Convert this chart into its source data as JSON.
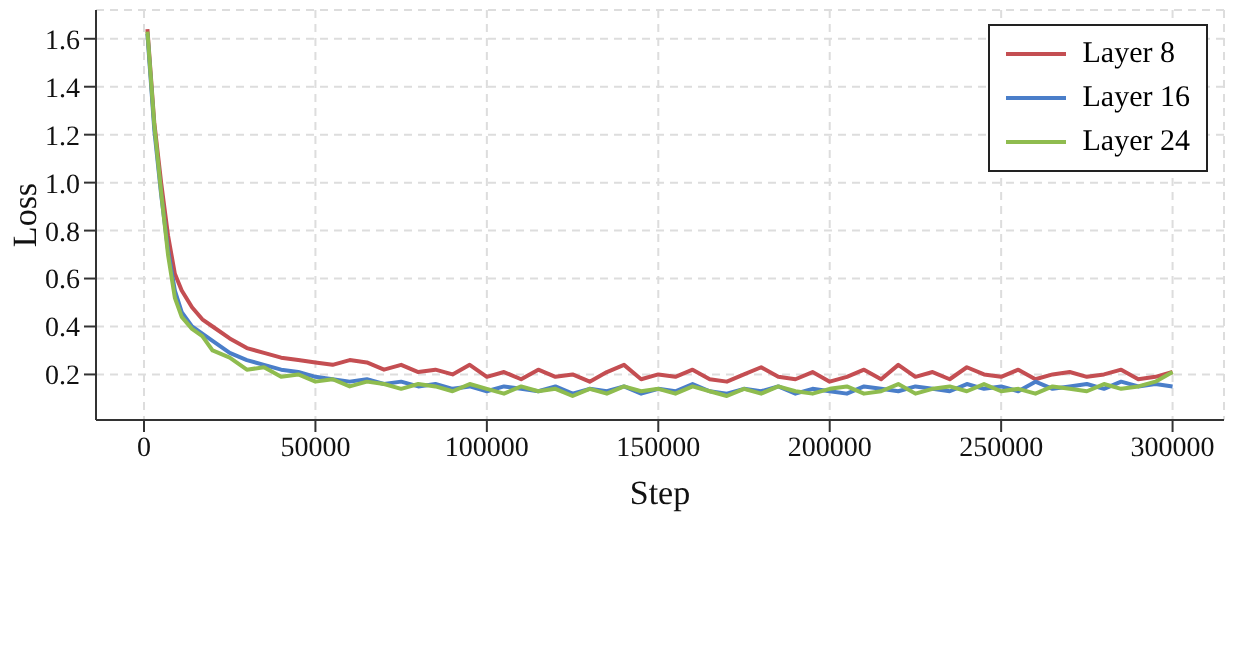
{
  "chart_data": {
    "type": "line",
    "xlabel": "Step",
    "ylabel": "Loss",
    "x": [
      1000,
      3000,
      5000,
      7000,
      9000,
      11000,
      14000,
      17000,
      20000,
      25000,
      30000,
      35000,
      40000,
      45000,
      50000,
      55000,
      60000,
      65000,
      70000,
      75000,
      80000,
      85000,
      90000,
      95000,
      100000,
      105000,
      110000,
      115000,
      120000,
      125000,
      130000,
      135000,
      140000,
      145000,
      150000,
      155000,
      160000,
      165000,
      170000,
      175000,
      180000,
      185000,
      190000,
      195000,
      200000,
      205000,
      210000,
      215000,
      220000,
      225000,
      230000,
      235000,
      240000,
      245000,
      250000,
      255000,
      260000,
      265000,
      270000,
      275000,
      280000,
      285000,
      290000,
      295000,
      300000
    ],
    "series": [
      {
        "name": "Layer 8",
        "color": "#c44e52",
        "values": [
          1.64,
          1.25,
          1.0,
          0.78,
          0.62,
          0.55,
          0.48,
          0.43,
          0.4,
          0.35,
          0.31,
          0.29,
          0.27,
          0.26,
          0.25,
          0.24,
          0.26,
          0.25,
          0.22,
          0.24,
          0.21,
          0.22,
          0.2,
          0.24,
          0.19,
          0.21,
          0.18,
          0.22,
          0.19,
          0.2,
          0.17,
          0.21,
          0.24,
          0.18,
          0.2,
          0.19,
          0.22,
          0.18,
          0.17,
          0.2,
          0.23,
          0.19,
          0.18,
          0.21,
          0.17,
          0.19,
          0.22,
          0.18,
          0.24,
          0.19,
          0.21,
          0.18,
          0.23,
          0.2,
          0.19,
          0.22,
          0.18,
          0.2,
          0.21,
          0.19,
          0.2,
          0.22,
          0.18,
          0.19,
          0.21
        ]
      },
      {
        "name": "Layer 16",
        "color": "#4a7ec9",
        "values": [
          1.62,
          1.22,
          0.95,
          0.72,
          0.55,
          0.46,
          0.4,
          0.37,
          0.34,
          0.29,
          0.26,
          0.24,
          0.22,
          0.21,
          0.19,
          0.18,
          0.17,
          0.18,
          0.16,
          0.17,
          0.15,
          0.16,
          0.14,
          0.15,
          0.13,
          0.15,
          0.14,
          0.13,
          0.15,
          0.12,
          0.14,
          0.13,
          0.15,
          0.12,
          0.14,
          0.13,
          0.16,
          0.13,
          0.12,
          0.14,
          0.13,
          0.15,
          0.12,
          0.14,
          0.13,
          0.12,
          0.15,
          0.14,
          0.13,
          0.15,
          0.14,
          0.13,
          0.16,
          0.14,
          0.15,
          0.13,
          0.17,
          0.14,
          0.15,
          0.16,
          0.14,
          0.17,
          0.15,
          0.16,
          0.15
        ]
      },
      {
        "name": "Layer 24",
        "color": "#8fbc4f",
        "values": [
          1.63,
          1.24,
          0.96,
          0.7,
          0.52,
          0.44,
          0.39,
          0.36,
          0.3,
          0.27,
          0.22,
          0.23,
          0.19,
          0.2,
          0.17,
          0.18,
          0.15,
          0.17,
          0.16,
          0.14,
          0.16,
          0.15,
          0.13,
          0.16,
          0.14,
          0.12,
          0.15,
          0.13,
          0.14,
          0.11,
          0.14,
          0.12,
          0.15,
          0.13,
          0.14,
          0.12,
          0.15,
          0.13,
          0.11,
          0.14,
          0.12,
          0.15,
          0.13,
          0.12,
          0.14,
          0.15,
          0.12,
          0.13,
          0.16,
          0.12,
          0.14,
          0.15,
          0.13,
          0.16,
          0.13,
          0.14,
          0.12,
          0.15,
          0.14,
          0.13,
          0.16,
          0.14,
          0.15,
          0.17,
          0.21
        ]
      }
    ],
    "xlim": [
      -14000,
      315000
    ],
    "xticks": [
      0,
      50000,
      100000,
      150000,
      200000,
      250000,
      300000
    ],
    "ylim": [
      0.01,
      1.72
    ],
    "yticks": [
      0.2,
      0.4,
      0.6,
      0.8,
      {
        "value": 1.0,
        "label": "1.0"
      },
      1.2,
      1.4,
      1.6
    ],
    "grid": true,
    "legend": "top right",
    "marker": "none",
    "line_style": "solid"
  }
}
